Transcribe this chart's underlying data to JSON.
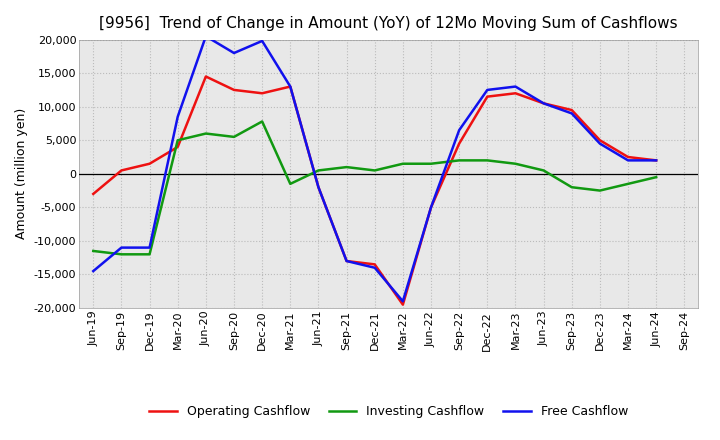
{
  "title": "[9956]  Trend of Change in Amount (YoY) of 12Mo Moving Sum of Cashflows",
  "ylabel": "Amount (million yen)",
  "x_labels": [
    "Jun-19",
    "Sep-19",
    "Dec-19",
    "Mar-20",
    "Jun-20",
    "Sep-20",
    "Dec-20",
    "Mar-21",
    "Jun-21",
    "Sep-21",
    "Dec-21",
    "Mar-22",
    "Jun-22",
    "Sep-22",
    "Dec-22",
    "Mar-23",
    "Jun-23",
    "Sep-23",
    "Dec-23",
    "Mar-24",
    "Jun-24",
    "Sep-24"
  ],
  "operating": [
    -3000,
    500,
    1500,
    4000,
    14500,
    12500,
    12000,
    13000,
    -2000,
    -13000,
    -13500,
    -19500,
    -5000,
    4500,
    11500,
    12000,
    10500,
    9500,
    5000,
    2500,
    2000,
    null
  ],
  "investing": [
    -11500,
    -12000,
    -12000,
    5000,
    6000,
    5500,
    7800,
    -1500,
    500,
    1000,
    500,
    1500,
    1500,
    2000,
    2000,
    1500,
    500,
    -2000,
    -2500,
    -1500,
    -500,
    null
  ],
  "free": [
    -14500,
    -11000,
    -11000,
    8500,
    20500,
    18000,
    19800,
    13000,
    -2000,
    -13000,
    -14000,
    -19000,
    -5000,
    6500,
    12500,
    13000,
    10500,
    9000,
    4500,
    2000,
    2000,
    null
  ],
  "operating_color": "#ee1111",
  "investing_color": "#119911",
  "free_color": "#1111ee",
  "ylim": [
    -20000,
    20000
  ],
  "yticks": [
    -20000,
    -15000,
    -10000,
    -5000,
    0,
    5000,
    10000,
    15000,
    20000
  ],
  "background_color": "#ffffff",
  "plot_bg_color": "#e8e8e8",
  "grid_color": "#bbbbbb",
  "title_fontsize": 11,
  "legend_fontsize": 9,
  "axis_fontsize": 8,
  "linewidth": 1.8
}
